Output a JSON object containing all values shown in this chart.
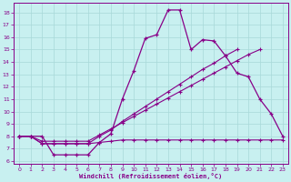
{
  "xlabel": "Windchill (Refroidissement éolien,°C)",
  "bg_color": "#c8f0f0",
  "grid_color": "#a8d8d8",
  "line_color": "#880088",
  "xlim": [
    -0.5,
    23.5
  ],
  "ylim": [
    5.8,
    18.8
  ],
  "xticks": [
    0,
    1,
    2,
    3,
    4,
    5,
    6,
    7,
    8,
    9,
    10,
    11,
    12,
    13,
    14,
    15,
    16,
    17,
    18,
    19,
    20,
    21,
    22,
    23
  ],
  "yticks": [
    6,
    7,
    8,
    9,
    10,
    11,
    12,
    13,
    14,
    15,
    16,
    17,
    18
  ],
  "series1_x": [
    0,
    1,
    2,
    3,
    4,
    5,
    6,
    7,
    8,
    9,
    10,
    11,
    12,
    13,
    14,
    15,
    16,
    17,
    18,
    19,
    20,
    21,
    22,
    23
  ],
  "series1_y": [
    8,
    8,
    8,
    6.5,
    6.5,
    6.5,
    6.5,
    7.5,
    8.2,
    11.0,
    13.3,
    15.9,
    16.2,
    18.2,
    18.2,
    15.0,
    15.8,
    15.7,
    14.5,
    13.1,
    12.8,
    11.0,
    9.8,
    8.0
  ],
  "series2_x": [
    0,
    1,
    2,
    3,
    4,
    5,
    6,
    7,
    8,
    9,
    10,
    11,
    12,
    13,
    14,
    15,
    16,
    17,
    18,
    19,
    20,
    21,
    22,
    23
  ],
  "series2_y": [
    8.0,
    8.0,
    7.4,
    7.4,
    7.4,
    7.4,
    7.4,
    8.0,
    8.5,
    9.2,
    9.8,
    10.4,
    11.0,
    11.6,
    12.2,
    12.8,
    13.4,
    13.9,
    14.5,
    15.0,
    null,
    null,
    null,
    null
  ],
  "series3_x": [
    0,
    1,
    2,
    3,
    4,
    5,
    6,
    7,
    8,
    9,
    10,
    11,
    12,
    13,
    14,
    15,
    16,
    17,
    18,
    19,
    20,
    21,
    22,
    23
  ],
  "series3_y": [
    8.0,
    8.0,
    7.6,
    7.6,
    7.6,
    7.6,
    7.6,
    8.1,
    8.6,
    9.1,
    9.6,
    10.1,
    10.6,
    11.1,
    11.6,
    12.1,
    12.6,
    13.1,
    13.6,
    14.1,
    14.6,
    15.0,
    null,
    null
  ],
  "series4_x": [
    0,
    1,
    2,
    3,
    4,
    5,
    6,
    7,
    8,
    9,
    10,
    11,
    12,
    13,
    14,
    15,
    16,
    17,
    18,
    19,
    20,
    21,
    22,
    23
  ],
  "series4_y": [
    8.0,
    8.0,
    7.4,
    7.4,
    7.4,
    7.4,
    7.4,
    7.5,
    7.6,
    7.7,
    7.7,
    7.7,
    7.7,
    7.7,
    7.7,
    7.7,
    7.7,
    7.7,
    7.7,
    7.7,
    7.7,
    7.7,
    7.7,
    7.7
  ]
}
